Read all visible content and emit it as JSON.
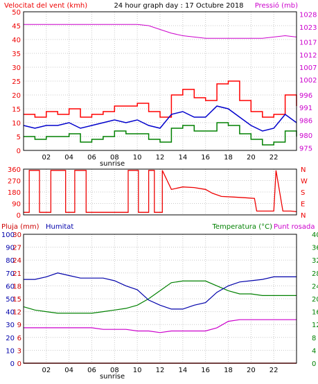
{
  "header": {
    "title": "24 hour graph day : 17 Octubre 2018",
    "wind_label": "Velocitat del vent (kmh)",
    "pressure_label": "Pressió (mb)"
  },
  "middle": {
    "dir_letters": [
      "N",
      "W",
      "S",
      "E",
      "N"
    ],
    "dir_ticks": [
      "360",
      "270",
      "180",
      "90",
      "0"
    ]
  },
  "bottom": {
    "rain_label": "Pluja (mm)",
    "hum_label": "Humitat",
    "temp_label": "Temperatura (°C)",
    "dew_label": "Punt rosada"
  },
  "x_axis": {
    "hours": [
      "02",
      "04",
      "06",
      "08",
      "10",
      "12",
      "14",
      "16",
      "18",
      "20",
      "22"
    ],
    "sunrise_label": "sunrise",
    "sunrise_hour": 7.8
  },
  "colors": {
    "wind_gust": "#ff0000",
    "wind_avg": "#0000cc",
    "wind_low": "#008000",
    "pressure": "#cc00cc",
    "direction": "#ee0000",
    "humidity": "#0000aa",
    "temperature": "#008000",
    "dewpoint": "#cc00cc",
    "rain": "#cc0000"
  },
  "chart_data": [
    {
      "type": "line",
      "title": "24 hour graph day : 17 Octubre 2018",
      "ylabel": "Velocitat del vent (kmh)",
      "ylim": [
        0,
        50
      ],
      "y_ticks": [
        "0",
        "5",
        "10",
        "15",
        "20",
        "25",
        "30",
        "35",
        "40",
        "45",
        "50"
      ],
      "y2label": "Pressió (mb)",
      "y2lim": [
        974,
        1029
      ],
      "y2_ticks": [
        "975",
        "980",
        "986",
        "991",
        "996",
        "1002",
        "1007",
        "1012",
        "1017",
        "1023",
        "1028"
      ],
      "x": [
        0,
        1,
        2,
        3,
        4,
        5,
        6,
        7,
        8,
        9,
        10,
        11,
        12,
        13,
        14,
        15,
        16,
        17,
        18,
        19,
        20,
        21,
        22,
        23,
        24
      ],
      "series": [
        {
          "name": "gust",
          "values": [
            13,
            12,
            14,
            13,
            15,
            12,
            13,
            14,
            16,
            16,
            17,
            14,
            12,
            20,
            22,
            19,
            18,
            24,
            25,
            18,
            14,
            12,
            13,
            20,
            16
          ]
        },
        {
          "name": "avg",
          "values": [
            9,
            8,
            9,
            9,
            10,
            8,
            9,
            10,
            11,
            10,
            11,
            9,
            8,
            13,
            14,
            12,
            12,
            16,
            15,
            12,
            9,
            7,
            8,
            13,
            10
          ]
        },
        {
          "name": "low",
          "values": [
            5,
            4,
            5,
            5,
            6,
            3,
            4,
            5,
            7,
            6,
            6,
            4,
            3,
            8,
            9,
            7,
            7,
            10,
            9,
            6,
            4,
            2,
            3,
            7,
            5
          ]
        },
        {
          "name": "pressure",
          "values": [
            1024,
            1024,
            1024,
            1024,
            1024,
            1024,
            1024,
            1024,
            1024,
            1024,
            1024,
            1023.5,
            1022,
            1020.5,
            1019.5,
            1019,
            1018.5,
            1018.5,
            1018.5,
            1018.5,
            1018.5,
            1018.5,
            1019,
            1019.5,
            1019
          ]
        }
      ]
    },
    {
      "type": "line",
      "ylim": [
        0,
        360
      ],
      "y_ticks": [
        "0",
        "90",
        "180",
        "270",
        "360"
      ],
      "x": [
        0,
        0.5,
        0.5,
        1.4,
        1.4,
        2.4,
        2.4,
        3.7,
        3.7,
        4.5,
        4.5,
        5.5,
        5.5,
        9.2,
        9.2,
        10.1,
        10.1,
        11,
        11,
        11.5,
        11.5,
        12.2,
        12.2,
        13,
        14,
        15,
        16,
        16.6,
        17.4,
        18.5,
        19.5,
        20.3,
        20.5,
        22,
        22.2,
        22.8,
        23.5,
        24
      ],
      "series": [
        {
          "name": "direction",
          "values": [
            20,
            20,
            350,
            350,
            20,
            20,
            350,
            350,
            20,
            20,
            350,
            350,
            20,
            20,
            350,
            350,
            20,
            20,
            350,
            350,
            20,
            20,
            350,
            200,
            220,
            215,
            200,
            170,
            145,
            140,
            135,
            130,
            30,
            30,
            350,
            30,
            30,
            25
          ]
        }
      ]
    },
    {
      "type": "line",
      "y_left_outer_label": "Pluja (mm)",
      "y_left_outer_lim": [
        0,
        30
      ],
      "y_left_outer_ticks": [
        "0",
        "3",
        "6",
        "9",
        "12",
        "15",
        "18",
        "21",
        "24",
        "27",
        "30"
      ],
      "y_left_inner_label": "Humitat",
      "y_left_inner_lim": [
        0,
        100
      ],
      "y_left_inner_ticks": [
        "0",
        "10",
        "20",
        "30",
        "40",
        "50",
        "60",
        "70",
        "80",
        "90",
        "100"
      ],
      "y_right_label": "Temperatura (°C)",
      "y_right_lim": [
        0,
        40
      ],
      "y_right_ticks": [
        "0",
        "4",
        "8",
        "12",
        "16",
        "20",
        "24",
        "28",
        "32",
        "36",
        "40"
      ],
      "x": [
        0,
        1,
        2,
        3,
        4,
        5,
        6,
        7,
        8,
        9,
        10,
        11,
        12,
        13,
        14,
        15,
        16,
        17,
        18,
        19,
        20,
        21,
        22,
        23,
        24
      ],
      "series": [
        {
          "name": "humidity",
          "values": [
            65,
            65,
            67,
            70,
            68,
            66,
            66,
            66,
            64,
            60,
            57,
            49,
            45,
            42,
            42,
            45,
            47,
            55,
            60,
            63,
            64,
            65,
            67,
            67,
            67
          ]
        },
        {
          "name": "temperature",
          "values": [
            17.5,
            16.5,
            16,
            15.5,
            15.5,
            15.5,
            15.5,
            16,
            16.5,
            17,
            18,
            20,
            22.5,
            25,
            25.5,
            25.5,
            25.5,
            24,
            22.5,
            21.5,
            21.5,
            21,
            21,
            21,
            21
          ]
        },
        {
          "name": "dewpoint",
          "values": [
            11,
            11,
            11,
            11,
            11,
            11,
            11,
            10.5,
            10.5,
            10.5,
            10,
            10,
            9.5,
            10,
            10,
            10,
            10,
            11,
            13,
            13.5,
            13.5,
            13.5,
            13.5,
            13.5,
            13.5
          ]
        },
        {
          "name": "rain",
          "values": [
            0,
            0,
            0,
            0,
            0,
            0,
            0,
            0,
            0,
            0,
            0,
            0,
            0,
            0,
            0,
            0,
            0,
            0,
            0,
            0,
            0,
            0,
            0,
            0,
            0
          ]
        }
      ]
    }
  ]
}
